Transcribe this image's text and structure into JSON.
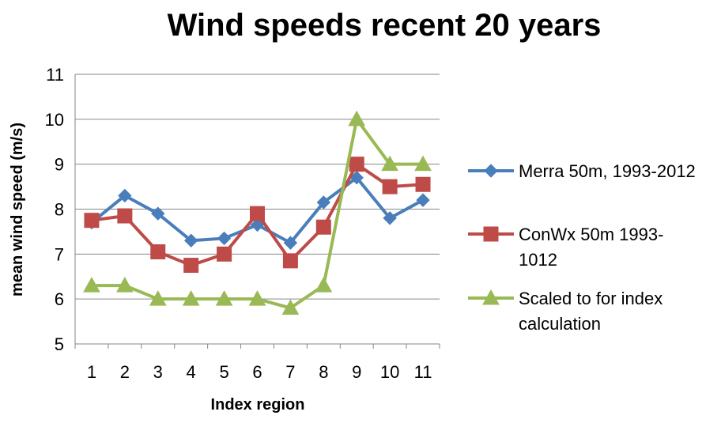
{
  "chart_data": {
    "type": "line",
    "title": "Wind speeds recent 20 years",
    "xlabel": "Index region",
    "ylabel": "mean wind speed (m/s)",
    "categories": [
      "1",
      "2",
      "3",
      "4",
      "5",
      "6",
      "7",
      "8",
      "9",
      "10",
      "11"
    ],
    "ylim": [
      5,
      11
    ],
    "yticks": [
      5,
      6,
      7,
      8,
      9,
      10,
      11
    ],
    "grid": "horizontal",
    "legend_position": "right",
    "series": [
      {
        "name": "Merra 50m, 1993-2012",
        "legend_lines": [
          "Merra 50m, 1993-2012"
        ],
        "color": "#4a7ebb",
        "marker": "diamond",
        "values": [
          7.7,
          8.3,
          7.9,
          7.3,
          7.35,
          7.65,
          7.25,
          8.15,
          8.7,
          7.8,
          8.2
        ]
      },
      {
        "name": "ConWx 50m 1993-1012",
        "legend_lines": [
          "ConWx 50m 1993-",
          "1012"
        ],
        "color": "#be4b48",
        "marker": "square",
        "values": [
          7.75,
          7.85,
          7.05,
          6.75,
          7.0,
          7.9,
          6.85,
          7.6,
          9.0,
          8.5,
          8.55
        ]
      },
      {
        "name": "Scaled to for index calculation",
        "legend_lines": [
          "Scaled to for index",
          "calculation"
        ],
        "color": "#98b954",
        "marker": "triangle",
        "values": [
          6.3,
          6.3,
          6.0,
          6.0,
          6.0,
          6.0,
          5.8,
          6.3,
          10.0,
          9.0,
          9.0
        ]
      }
    ]
  }
}
